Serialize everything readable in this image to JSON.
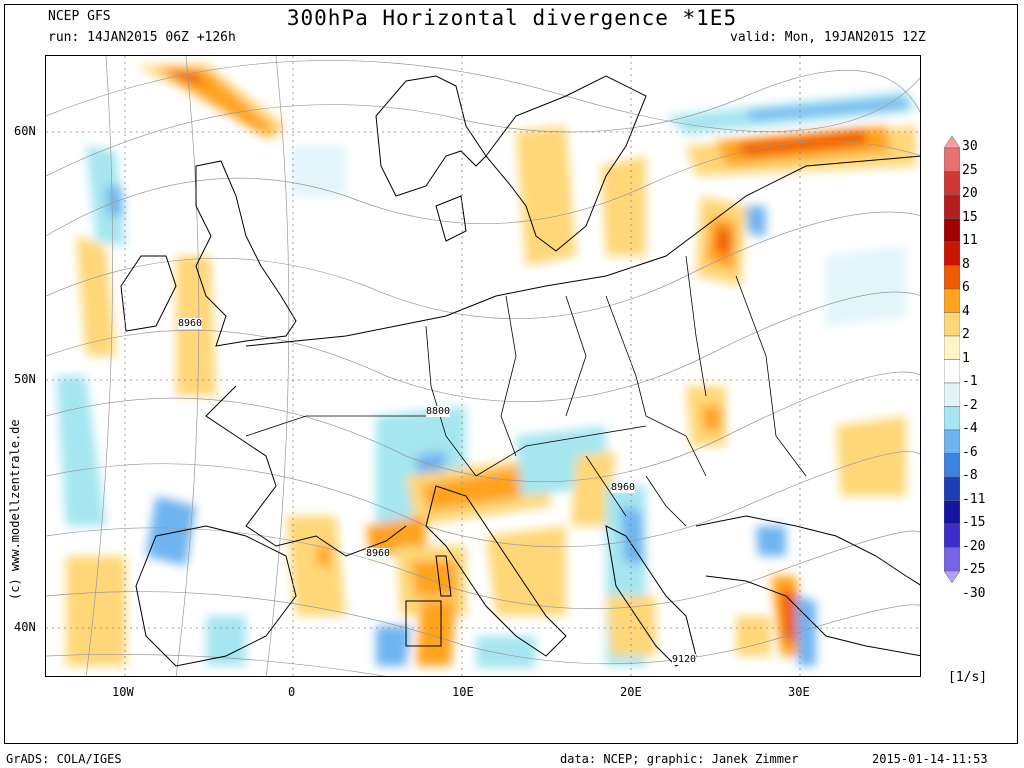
{
  "header": {
    "model": "NCEP GFS",
    "run": "run: 14JAN2015 06Z +126h",
    "title": "300hPa Horizontal divergence *1E5",
    "valid": "valid: Mon, 19JAN2015 12Z"
  },
  "map": {
    "lat_labels": [
      "60N",
      "50N",
      "40N"
    ],
    "lon_labels": [
      "10W",
      "0",
      "10E",
      "20E",
      "30E"
    ],
    "contour_labels": [
      "8960",
      "8800",
      "8960",
      "8960",
      "9120"
    ],
    "watermark": "(c) www.modellzentrale.de"
  },
  "colorbar": {
    "labels": [
      "30",
      "25",
      "20",
      "15",
      "11",
      "8",
      "6",
      "4",
      "2",
      "1",
      "-1",
      "-2",
      "-4",
      "-6",
      "-8",
      "-11",
      "-15",
      "-20",
      "-25",
      "-30"
    ],
    "colors": [
      "#f5a0a0",
      "#e87070",
      "#d03838",
      "#b41e1e",
      "#a00000",
      "#c81400",
      "#f05a00",
      "#ffa31e",
      "#ffd778",
      "#fff5c8",
      "#ffffff",
      "#e1f5fa",
      "#a5e6f0",
      "#6eb4f0",
      "#3c82e1",
      "#1e3cb4",
      "#1414a0",
      "#3c2dc8",
      "#7864e6",
      "#b4a0fa"
    ],
    "unit": "[1/s]"
  },
  "footer": {
    "software": "GrADS: COLA/IGES",
    "credit": "data: NCEP; graphic: Janek Zimmer",
    "timestamp": "2015-01-14-11:53"
  }
}
